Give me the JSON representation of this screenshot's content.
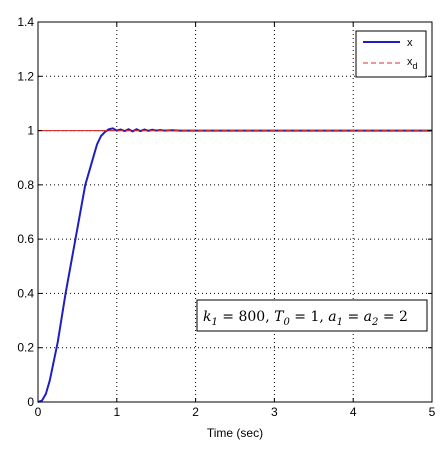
{
  "chart_data": {
    "type": "line",
    "title": "",
    "xlabel": "Time (sec)",
    "ylabel": "",
    "xlim": [
      0,
      5
    ],
    "ylim": [
      0,
      1.4
    ],
    "xticks": [
      0,
      1,
      2,
      3,
      4,
      5
    ],
    "yticks": [
      0,
      0.2,
      0.4,
      0.6,
      0.8,
      1,
      1.2,
      1.4
    ],
    "grid": true,
    "grid_style": "dotted",
    "legend_position": "top-right",
    "series": [
      {
        "name": "x",
        "color": "#1f1fbf",
        "style": "solid",
        "x": [
          0,
          0.05,
          0.1,
          0.15,
          0.2,
          0.25,
          0.3,
          0.35,
          0.4,
          0.45,
          0.5,
          0.55,
          0.6,
          0.65,
          0.7,
          0.75,
          0.8,
          0.85,
          0.9,
          0.95,
          1.0,
          1.05,
          1.1,
          1.15,
          1.2,
          1.25,
          1.3,
          1.35,
          1.4,
          1.45,
          1.5,
          1.55,
          1.6,
          1.7,
          1.8,
          1.9,
          2.0,
          2.5,
          3.0,
          3.5,
          4.0,
          4.5,
          5.0
        ],
        "y": [
          0,
          0.005,
          0.03,
          0.08,
          0.15,
          0.22,
          0.31,
          0.4,
          0.48,
          0.56,
          0.64,
          0.72,
          0.8,
          0.85,
          0.9,
          0.95,
          0.98,
          0.995,
          1.005,
          1.008,
          1.0,
          1.004,
          0.998,
          1.005,
          0.997,
          1.005,
          0.998,
          1.004,
          0.999,
          1.003,
          1.0,
          1.002,
          1.0,
          1.001,
          1.0,
          1.0,
          1.0,
          1.0,
          1.0,
          1.0,
          1.0,
          1.0,
          1.0
        ]
      },
      {
        "name": "x_d",
        "color": "#d83030",
        "style": "dashed",
        "x": [
          0,
          5
        ],
        "y": [
          1,
          1
        ]
      }
    ],
    "reference_line": {
      "y": 1,
      "color": "#cc2020"
    },
    "annotation": "k_1 = 800, T_0 = 1, a_1 = a_2 = 2"
  },
  "legend": {
    "items": [
      {
        "label": "x",
        "subscript": "",
        "color": "#1f1fbf",
        "style": "solid"
      },
      {
        "label": "x",
        "subscript": "d",
        "color": "#d83030",
        "style": "dashed"
      }
    ]
  },
  "annotation_box": {
    "k_sym": "k",
    "k_sub": "1",
    "k_val": " = 800, ",
    "t_sym": "T",
    "t_sub": "0",
    "t_val": " = 1, ",
    "a1_sym": "a",
    "a1_sub": "1",
    "eq": " = ",
    "a2_sym": "a",
    "a2_sub": "2",
    "a2_val": " = 2"
  }
}
